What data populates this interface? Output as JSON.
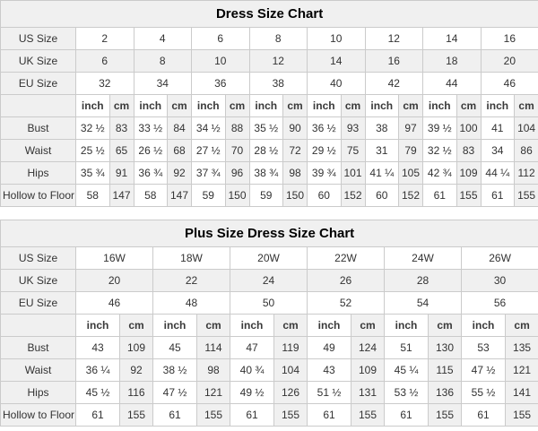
{
  "colors": {
    "cell_shaded": "#f0f0f0",
    "cell_white": "#ffffff",
    "border": "#cbcbcb",
    "text": "#333333",
    "title_text": "#000000"
  },
  "tables": [
    {
      "title": "Dress Size Chart",
      "unit_labels": [
        "inch",
        "cm"
      ],
      "rows": [
        {
          "kind": "size",
          "label": "US Size",
          "shaded": false,
          "cells": [
            "2",
            "4",
            "6",
            "8",
            "10",
            "12",
            "14",
            "16"
          ]
        },
        {
          "kind": "size",
          "label": "UK Size",
          "shaded": true,
          "cells": [
            "6",
            "8",
            "10",
            "12",
            "14",
            "16",
            "18",
            "20"
          ]
        },
        {
          "kind": "size",
          "label": "EU Size",
          "shaded": false,
          "cells": [
            "32",
            "34",
            "36",
            "38",
            "40",
            "42",
            "44",
            "46"
          ]
        },
        {
          "kind": "units",
          "label": "",
          "cells": [
            "inch",
            "cm",
            "inch",
            "cm",
            "inch",
            "cm",
            "inch",
            "cm",
            "inch",
            "cm",
            "inch",
            "cm",
            "inch",
            "cm",
            "inch",
            "cm"
          ]
        },
        {
          "kind": "measure",
          "label": "Bust",
          "cells": [
            "32 ½",
            "83",
            "33 ½",
            "84",
            "34 ½",
            "88",
            "35 ½",
            "90",
            "36 ½",
            "93",
            "38",
            "97",
            "39 ½",
            "100",
            "41",
            "104"
          ]
        },
        {
          "kind": "measure",
          "label": "Waist",
          "cells": [
            "25 ½",
            "65",
            "26 ½",
            "68",
            "27 ½",
            "70",
            "28 ½",
            "72",
            "29 ½",
            "75",
            "31",
            "79",
            "32 ½",
            "83",
            "34",
            "86"
          ]
        },
        {
          "kind": "measure",
          "label": "Hips",
          "cells": [
            "35 ¾",
            "91",
            "36 ¾",
            "92",
            "37 ¾",
            "96",
            "38 ¾",
            "98",
            "39 ¾",
            "101",
            "41 ¼",
            "105",
            "42 ¾",
            "109",
            "44 ¼",
            "112"
          ]
        },
        {
          "kind": "measure",
          "label": "Hollow to Floor",
          "cells": [
            "58",
            "147",
            "58",
            "147",
            "59",
            "150",
            "59",
            "150",
            "60",
            "152",
            "60",
            "152",
            "61",
            "155",
            "61",
            "155"
          ]
        }
      ]
    },
    {
      "title": "Plus Size Dress Size Chart",
      "unit_labels": [
        "inch",
        "cm"
      ],
      "rows": [
        {
          "kind": "size",
          "label": "US Size",
          "shaded": false,
          "cells": [
            "16W",
            "18W",
            "20W",
            "22W",
            "24W",
            "26W"
          ]
        },
        {
          "kind": "size",
          "label": "UK Size",
          "shaded": true,
          "cells": [
            "20",
            "22",
            "24",
            "26",
            "28",
            "30"
          ]
        },
        {
          "kind": "size",
          "label": "EU Size",
          "shaded": false,
          "cells": [
            "46",
            "48",
            "50",
            "52",
            "54",
            "56"
          ]
        },
        {
          "kind": "units",
          "label": "",
          "cells": [
            "inch",
            "cm",
            "inch",
            "cm",
            "inch",
            "cm",
            "inch",
            "cm",
            "inch",
            "cm",
            "inch",
            "cm"
          ]
        },
        {
          "kind": "measure",
          "label": "Bust",
          "cells": [
            "43",
            "109",
            "45",
            "114",
            "47",
            "119",
            "49",
            "124",
            "51",
            "130",
            "53",
            "135"
          ]
        },
        {
          "kind": "measure",
          "label": "Waist",
          "cells": [
            "36 ¼",
            "92",
            "38 ½",
            "98",
            "40 ¾",
            "104",
            "43",
            "109",
            "45 ¼",
            "115",
            "47 ½",
            "121"
          ]
        },
        {
          "kind": "measure",
          "label": "Hips",
          "cells": [
            "45 ½",
            "116",
            "47 ½",
            "121",
            "49 ½",
            "126",
            "51 ½",
            "131",
            "53 ½",
            "136",
            "55 ½",
            "141"
          ]
        },
        {
          "kind": "measure",
          "label": "Hollow to Floor",
          "cells": [
            "61",
            "155",
            "61",
            "155",
            "61",
            "155",
            "61",
            "155",
            "61",
            "155",
            "61",
            "155"
          ]
        }
      ]
    }
  ]
}
